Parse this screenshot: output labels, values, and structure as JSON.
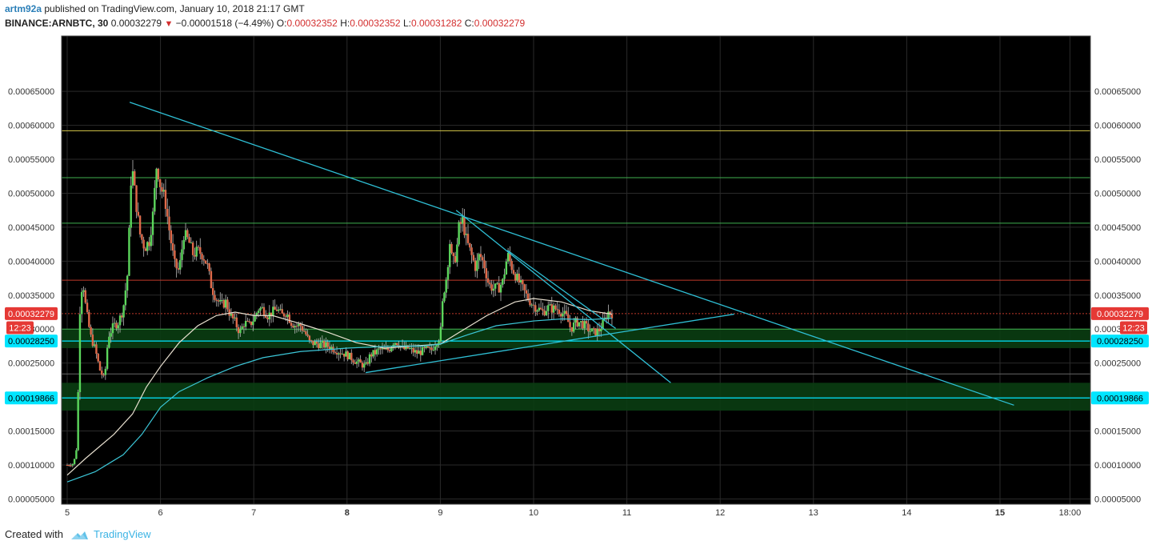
{
  "header": {
    "user": "artm92a",
    "published": "published on TradingView.com, January 10, 2018 21:17 GMT",
    "symbol": "BINANCE:ARNBTC, 30",
    "last": "0.00032279",
    "arrow": "▼",
    "change": "−0.00001518 (−4.49%)",
    "o_label": "O:",
    "o": "0.00032352",
    "h_label": "H:",
    "h": "0.00032352",
    "l_label": "L:",
    "l": "0.00031282",
    "c_label": "C:",
    "c": "0.00032279"
  },
  "footer": {
    "created_with": "Created with",
    "brand": "TradingView"
  },
  "colors": {
    "background": "#000000",
    "up": "#5cd65c",
    "down": "#e06a4a",
    "wick": "#bbbbbb",
    "ma_fast": "#e8e0d0",
    "ma_slow": "#3cc7d8",
    "trendline": "#2fc0d6",
    "yellow_line": "#d6c84a",
    "green_line": "#3fb04f",
    "red_dotted": "#c0392b",
    "zone_fill": "#0a3d12",
    "cyan_label": "#00e5ff",
    "red_label": "#e53935"
  },
  "chart_data": {
    "type": "candlestick",
    "title": "",
    "xlabel": "",
    "ylabel": "",
    "ylim": [
      4e-05,
      0.00066
    ],
    "xlim": [
      4.95,
      15.77
    ],
    "y_ticks": [
      "0.00005000",
      "0.00010000",
      "0.00015000",
      "0.00020000",
      "0.00025000",
      "0.00030000",
      "0.00035000",
      "0.00040000",
      "0.00045000",
      "0.00050000",
      "0.00055000",
      "0.00060000",
      "0.00065000"
    ],
    "y_tick_values": [
      5e-05,
      0.0001,
      0.00015,
      0.0002,
      0.00025,
      0.0003,
      0.00035,
      0.0004,
      0.00045,
      0.0005,
      0.00055,
      0.0006,
      0.00065
    ],
    "x_ticks": [
      "5",
      "6",
      "7",
      "8",
      "9",
      "10",
      "11",
      "12",
      "13",
      "14",
      "15",
      "18:00"
    ],
    "x_tick_values": [
      5,
      6,
      7,
      8,
      9,
      10,
      11,
      12,
      13,
      14,
      15,
      15.75
    ],
    "x_bold_ticks": [
      "8",
      "15"
    ],
    "price_labels": [
      {
        "text": "0.00032279",
        "value": 0.00032279,
        "style": "red"
      },
      {
        "text": "12:23",
        "value": 0.000302,
        "style": "red"
      },
      {
        "text": "0.00028250",
        "value": 0.0002825,
        "style": "cyan"
      },
      {
        "text": "0.00019866",
        "value": 0.00019866,
        "style": "cyan"
      }
    ],
    "horizontal_levels": [
      {
        "value": 0.000592,
        "color": "yellow"
      },
      {
        "value": 0.000523,
        "color": "green"
      },
      {
        "value": 0.000456,
        "color": "green"
      },
      {
        "value": 0.000372,
        "color": "red"
      },
      {
        "value": 0.00032279,
        "color": "red-dotted"
      },
      {
        "value": 0.0003,
        "color": "green"
      },
      {
        "value": 0.000234,
        "color": "gray"
      }
    ],
    "zones": [
      {
        "from": 0.000272,
        "to": 0.0003
      },
      {
        "from": 0.00018,
        "to": 0.000221
      }
    ],
    "trendlines": [
      {
        "x1": 5.67,
        "y1": 0.000634,
        "x2": 15.15,
        "y2": 0.000188
      },
      {
        "x1": 9.17,
        "y1": 0.000475,
        "x2": 11.47,
        "y2": 0.000221
      },
      {
        "x1": 8.2,
        "y1": 0.000236,
        "x2": 12.15,
        "y2": 0.000322
      },
      {
        "x1": 9.72,
        "y1": 0.000416,
        "x2": 10.88,
        "y2": 0.000301
      }
    ],
    "candle_count": 300,
    "candle_x_range": [
      5.0,
      10.84
    ],
    "close_path": [
      [
        5.0,
        0.0001
      ],
      [
        5.07,
        0.000102
      ],
      [
        5.1,
        0.000125
      ],
      [
        5.12,
        0.00022
      ],
      [
        5.14,
        0.00035
      ],
      [
        5.17,
        0.00037
      ],
      [
        5.2,
        0.00033
      ],
      [
        5.25,
        0.00029
      ],
      [
        5.3,
        0.00027
      ],
      [
        5.35,
        0.00024
      ],
      [
        5.4,
        0.000225
      ],
      [
        5.44,
        0.00029
      ],
      [
        5.5,
        0.000305
      ],
      [
        5.55,
        0.00031
      ],
      [
        5.6,
        0.00033
      ],
      [
        5.65,
        0.000385
      ],
      [
        5.69,
        0.000545
      ],
      [
        5.73,
        0.000495
      ],
      [
        5.78,
        0.00044
      ],
      [
        5.83,
        0.00042
      ],
      [
        5.88,
        0.00043
      ],
      [
        5.92,
        0.00047
      ],
      [
        5.96,
        0.000545
      ],
      [
        6.0,
        0.00051
      ],
      [
        6.05,
        0.00049
      ],
      [
        6.1,
        0.00044
      ],
      [
        6.15,
        0.000395
      ],
      [
        6.2,
        0.000385
      ],
      [
        6.25,
        0.00044
      ],
      [
        6.3,
        0.00043
      ],
      [
        6.35,
        0.00041
      ],
      [
        6.4,
        0.000415
      ],
      [
        6.45,
        0.00041
      ],
      [
        6.5,
        0.000395
      ],
      [
        6.55,
        0.00036
      ],
      [
        6.6,
        0.000345
      ],
      [
        6.65,
        0.000335
      ],
      [
        6.7,
        0.00034
      ],
      [
        6.75,
        0.00032
      ],
      [
        6.8,
        0.00031
      ],
      [
        6.85,
        0.000295
      ],
      [
        6.9,
        0.00031
      ],
      [
        6.95,
        0.000305
      ],
      [
        7.0,
        0.000315
      ],
      [
        7.05,
        0.00033
      ],
      [
        7.1,
        0.00033
      ],
      [
        7.15,
        0.00032
      ],
      [
        7.2,
        0.000325
      ],
      [
        7.25,
        0.00033
      ],
      [
        7.3,
        0.00032
      ],
      [
        7.35,
        0.000325
      ],
      [
        7.4,
        0.00031
      ],
      [
        7.45,
        0.000305
      ],
      [
        7.5,
        0.000305
      ],
      [
        7.55,
        0.000295
      ],
      [
        7.6,
        0.00028
      ],
      [
        7.7,
        0.000278
      ],
      [
        7.8,
        0.000275
      ],
      [
        7.9,
        0.000268
      ],
      [
        8.0,
        0.000262
      ],
      [
        8.1,
        0.000252
      ],
      [
        8.2,
        0.000245
      ],
      [
        8.25,
        0.000262
      ],
      [
        8.3,
        0.000265
      ],
      [
        8.35,
        0.00027
      ],
      [
        8.4,
        0.000268
      ],
      [
        8.45,
        0.00027
      ],
      [
        8.5,
        0.000282
      ],
      [
        8.55,
        0.00028
      ],
      [
        8.6,
        0.00027
      ],
      [
        8.65,
        0.000272
      ],
      [
        8.7,
        0.000268
      ],
      [
        8.75,
        0.000265
      ],
      [
        8.8,
        0.000267
      ],
      [
        8.85,
        0.00027
      ],
      [
        8.9,
        0.000268
      ],
      [
        8.95,
        0.00028
      ],
      [
        9.0,
        0.00029
      ],
      [
        9.03,
        0.00035
      ],
      [
        9.07,
        0.00038
      ],
      [
        9.1,
        0.00043
      ],
      [
        9.13,
        0.000395
      ],
      [
        9.17,
        0.00041
      ],
      [
        9.2,
        0.00045
      ],
      [
        9.24,
        0.00046
      ],
      [
        9.28,
        0.00043
      ],
      [
        9.33,
        0.00041
      ],
      [
        9.38,
        0.00039
      ],
      [
        9.42,
        0.00041
      ],
      [
        9.47,
        0.000395
      ],
      [
        9.52,
        0.000365
      ],
      [
        9.57,
        0.00036
      ],
      [
        9.62,
        0.00036
      ],
      [
        9.67,
        0.00037
      ],
      [
        9.72,
        0.00041
      ],
      [
        9.77,
        0.00039
      ],
      [
        9.82,
        0.000375
      ],
      [
        9.88,
        0.00036
      ],
      [
        9.94,
        0.000345
      ],
      [
        10.0,
        0.000335
      ],
      [
        10.05,
        0.00033
      ],
      [
        10.1,
        0.000325
      ],
      [
        10.15,
        0.000332
      ],
      [
        10.2,
        0.00033
      ],
      [
        10.25,
        0.00033
      ],
      [
        10.3,
        0.000325
      ],
      [
        10.35,
        0.000318
      ],
      [
        10.4,
        0.0003
      ],
      [
        10.45,
        0.00031
      ],
      [
        10.5,
        0.00031
      ],
      [
        10.55,
        0.000305
      ],
      [
        10.6,
        0.000298
      ],
      [
        10.65,
        0.000295
      ],
      [
        10.7,
        0.000298
      ],
      [
        10.75,
        0.00031
      ],
      [
        10.8,
        0.000325
      ],
      [
        10.84,
        0.00032279
      ]
    ],
    "ma_fast": [
      [
        5.0,
        8.5e-05
      ],
      [
        5.2,
        0.00011
      ],
      [
        5.5,
        0.000145
      ],
      [
        5.7,
        0.000175
      ],
      [
        5.85,
        0.000215
      ],
      [
        6.0,
        0.000245
      ],
      [
        6.2,
        0.00028
      ],
      [
        6.4,
        0.000305
      ],
      [
        6.6,
        0.00032
      ],
      [
        6.8,
        0.000325
      ],
      [
        7.0,
        0.00032
      ],
      [
        7.2,
        0.00032
      ],
      [
        7.5,
        0.000308
      ],
      [
        7.8,
        0.000295
      ],
      [
        8.1,
        0.00028
      ],
      [
        8.4,
        0.000272
      ],
      [
        8.7,
        0.000275
      ],
      [
        9.0,
        0.000278
      ],
      [
        9.2,
        0.000295
      ],
      [
        9.5,
        0.00032
      ],
      [
        9.8,
        0.00034
      ],
      [
        10.0,
        0.000345
      ],
      [
        10.3,
        0.00034
      ],
      [
        10.6,
        0.000327
      ],
      [
        10.84,
        0.000322
      ]
    ],
    "ma_slow": [
      [
        5.0,
        7.5e-05
      ],
      [
        5.3,
        9e-05
      ],
      [
        5.6,
        0.000115
      ],
      [
        5.8,
        0.000145
      ],
      [
        6.0,
        0.000185
      ],
      [
        6.2,
        0.000208
      ],
      [
        6.5,
        0.000228
      ],
      [
        6.8,
        0.000245
      ],
      [
        7.1,
        0.000258
      ],
      [
        7.5,
        0.000267
      ],
      [
        8.0,
        0.000272
      ],
      [
        8.5,
        0.000275
      ],
      [
        8.8,
        0.000275
      ],
      [
        9.0,
        0.000278
      ],
      [
        9.3,
        0.000292
      ],
      [
        9.6,
        0.000305
      ],
      [
        10.0,
        0.000312
      ],
      [
        10.3,
        0.000315
      ],
      [
        10.6,
        0.000314
      ],
      [
        10.84,
        0.000316
      ]
    ]
  }
}
